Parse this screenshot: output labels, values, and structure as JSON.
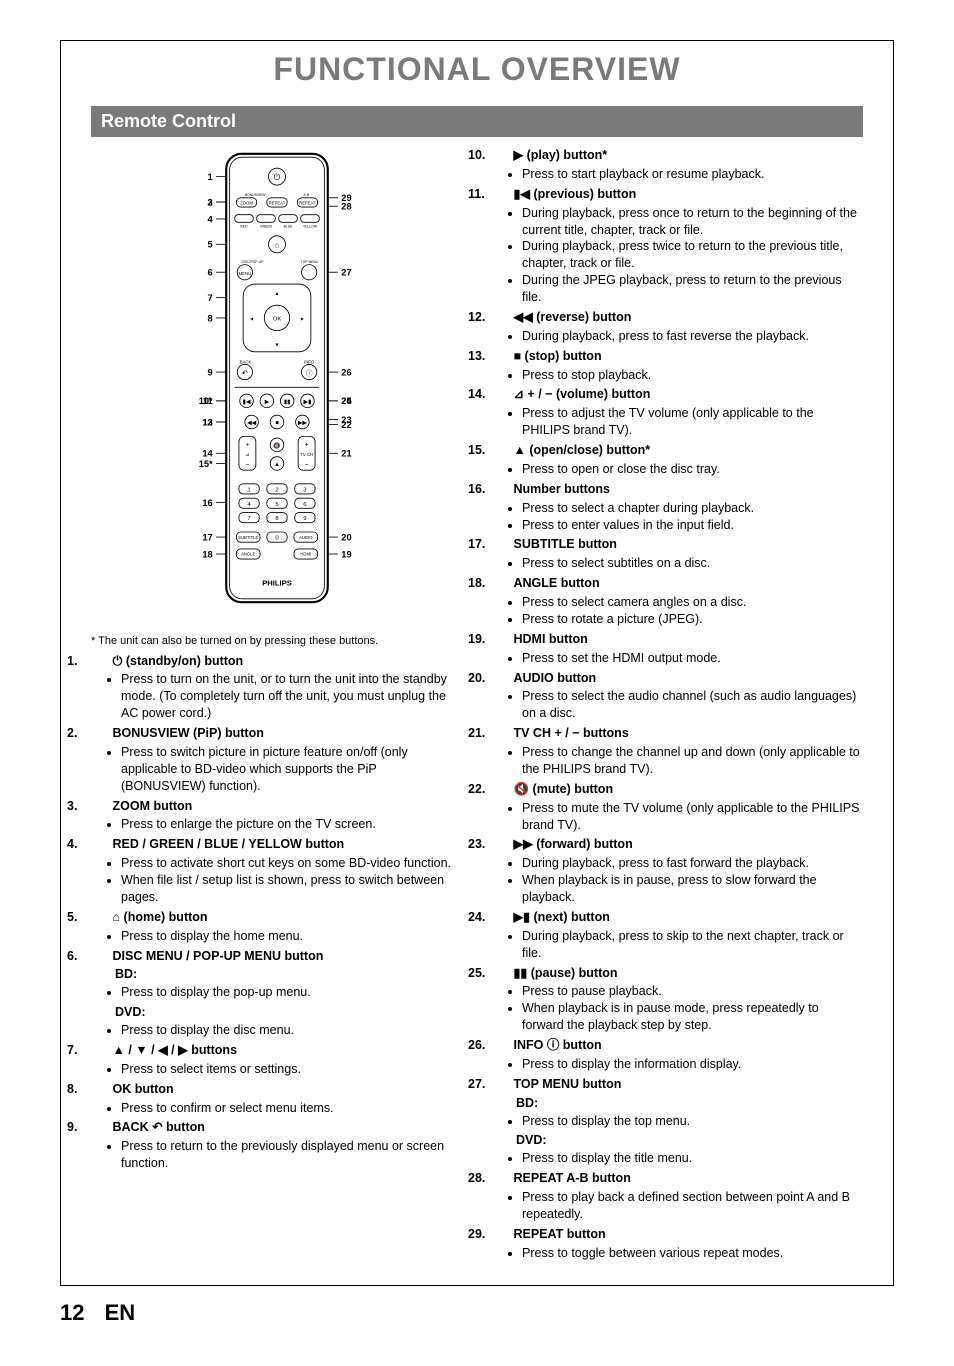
{
  "page_title": "FUNCTIONAL OVERVIEW",
  "section_header": "Remote Control",
  "footnote": "* The unit can also be turned on by pressing these buttons.",
  "page_number": "12",
  "page_lang": "EN",
  "col_left": [
    {
      "num": "1.",
      "sym": "⏻",
      "label": "(standby/on) button",
      "subs": [
        "Press to turn on the unit, or to turn the unit into the standby mode. (To completely turn off the unit, you must unplug the AC power cord.)"
      ]
    },
    {
      "num": "2.",
      "sym": "",
      "label": "BONUSVIEW (PiP) button",
      "subs": [
        "Press to switch picture in picture feature on/off (only applicable to BD-video which supports the PiP (BONUSVIEW) function)."
      ]
    },
    {
      "num": "3.",
      "sym": "",
      "label": "ZOOM button",
      "subs": [
        "Press to enlarge the picture on the TV screen."
      ]
    },
    {
      "num": "4.",
      "sym": "",
      "label": "RED / GREEN / BLUE / YELLOW  button",
      "subs": [
        "Press to activate short cut keys on some BD-video function.",
        "When file list / setup list is shown, press to switch between pages."
      ]
    },
    {
      "num": "5.",
      "sym": "⌂",
      "label": "(home) button",
      "subs": [
        "Press to display the home menu."
      ]
    },
    {
      "num": "6.",
      "sym": "",
      "label": "DISC MENU / POP-UP MENU button",
      "subheads": [
        {
          "h": "BD:",
          "subs": [
            "Press to display the pop-up menu."
          ]
        },
        {
          "h": "DVD:",
          "subs": [
            "Press to display the disc menu."
          ]
        }
      ]
    },
    {
      "num": "7.",
      "sym": "▲ / ▼ / ◀ / ▶",
      "label": "buttons",
      "subs": [
        "Press to select items or settings."
      ]
    },
    {
      "num": "8.",
      "sym": "",
      "label": "OK button",
      "subs": [
        "Press to confirm or select menu items."
      ]
    },
    {
      "num": "9.",
      "sym": "",
      "label": "BACK ↶ button",
      "subs": [
        "Press to return to the previously displayed menu or screen function."
      ]
    }
  ],
  "col_right": [
    {
      "num": "10.",
      "sym": "▶",
      "label": "(play) button*",
      "subs": [
        "Press to start playback or resume playback."
      ]
    },
    {
      "num": "11.",
      "sym": "▮◀",
      "label": "(previous) button",
      "subs": [
        "During playback, press once to return to the beginning of the current title, chapter, track or file.",
        "During playback, press twice to return to the previous title, chapter, track or file.",
        "During the JPEG playback, press to return to the previous file."
      ]
    },
    {
      "num": "12.",
      "sym": "◀◀",
      "label": "(reverse) button",
      "subs": [
        "During playback, press to fast reverse the playback."
      ]
    },
    {
      "num": "13.",
      "sym": "■",
      "label": "(stop) button",
      "subs": [
        "Press to stop playback."
      ]
    },
    {
      "num": "14.",
      "sym": "⊿ + / −",
      "label": "(volume) button",
      "subs": [
        "Press to adjust the TV volume (only applicable to the PHILIPS brand TV)."
      ]
    },
    {
      "num": "15.",
      "sym": "▲",
      "label": "(open/close) button*",
      "subs": [
        "Press to open or close the disc tray."
      ]
    },
    {
      "num": "16.",
      "sym": "",
      "label": "Number buttons",
      "subs": [
        "Press to select a chapter during playback.",
        "Press to enter values in the input field."
      ]
    },
    {
      "num": "17.",
      "sym": "",
      "label": "SUBTITLE button",
      "subs": [
        "Press to select subtitles on a disc."
      ]
    },
    {
      "num": "18.",
      "sym": "",
      "label": "ANGLE button",
      "subs": [
        "Press to select camera angles on a disc.",
        "Press to rotate a picture (JPEG)."
      ]
    },
    {
      "num": "19.",
      "sym": "",
      "label": "HDMI button",
      "subs": [
        "Press to set the HDMI output mode."
      ]
    },
    {
      "num": "20.",
      "sym": "",
      "label": "AUDIO button",
      "subs": [
        "Press to select the audio channel (such as audio languages) on a disc."
      ]
    },
    {
      "num": "21.",
      "sym": "",
      "label": "TV CH + / −  buttons",
      "subs": [
        "Press to change the channel up and down (only applicable to the PHILIPS brand TV)."
      ]
    },
    {
      "num": "22.",
      "sym": "🔇",
      "label": "(mute) button",
      "subs": [
        "Press to mute the TV volume (only applicable to the PHILIPS brand TV)."
      ]
    },
    {
      "num": "23.",
      "sym": "▶▶",
      "label": "(forward) button",
      "subs": [
        "During playback, press to fast forward the playback.",
        "When playback is in pause, press to slow forward the playback."
      ]
    },
    {
      "num": "24.",
      "sym": "▶▮",
      "label": "(next) button",
      "subs": [
        "During playback, press to skip to the next chapter, track or file."
      ]
    },
    {
      "num": "25.",
      "sym": "▮▮",
      "label": "(pause) button",
      "subs": [
        "Press to pause playback.",
        "When playback is in pause mode, press repeatedly to forward the playback step by step."
      ]
    },
    {
      "num": "26.",
      "sym": "",
      "label": "INFO ⓘ button",
      "subs": [
        "Press to display the information display."
      ]
    },
    {
      "num": "27.",
      "sym": "",
      "label": "TOP MENU button",
      "subheads": [
        {
          "h": "BD:",
          "subs": [
            "Press to display the top menu."
          ]
        },
        {
          "h": "DVD:",
          "subs": [
            "Press to display the title menu."
          ]
        }
      ]
    },
    {
      "num": "28.",
      "sym": "",
      "label": "REPEAT A-B button",
      "subs": [
        "Press to play back a defined section between point A and B repeatedly."
      ]
    },
    {
      "num": "29.",
      "sym": "",
      "label": "REPEAT button",
      "subs": [
        "Press to toggle between various repeat modes."
      ]
    }
  ],
  "remote_labels_left": [
    "1",
    "2",
    "3",
    "4",
    "5",
    "6",
    "7",
    "8",
    "9",
    "10*",
    "11",
    "12",
    "13",
    "14",
    "15*",
    "16",
    "17",
    "18"
  ],
  "remote_labels_right": [
    "29",
    "28",
    "27",
    "26",
    "25",
    "24",
    "23",
    "22",
    "21",
    "20",
    "19"
  ],
  "brand": "PHILIPS"
}
